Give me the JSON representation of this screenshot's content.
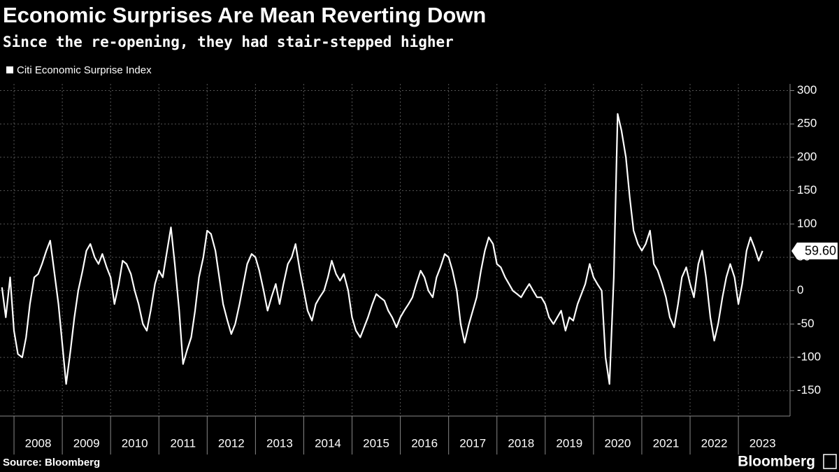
{
  "chart_data": {
    "type": "line",
    "title": "Economic Surprises Are Mean Reverting Down",
    "subtitle": "Since the re-opening, they had stair-stepped higher",
    "source": "Source: Bloomberg",
    "brand": "Bloomberg",
    "x": [
      2007.75,
      2007.83,
      2007.92,
      2008.0,
      2008.08,
      2008.17,
      2008.25,
      2008.33,
      2008.42,
      2008.5,
      2008.58,
      2008.67,
      2008.75,
      2008.83,
      2008.92,
      2009.0,
      2009.08,
      2009.17,
      2009.25,
      2009.33,
      2009.42,
      2009.5,
      2009.58,
      2009.67,
      2009.75,
      2009.83,
      2009.92,
      2010.0,
      2010.08,
      2010.17,
      2010.25,
      2010.33,
      2010.42,
      2010.5,
      2010.58,
      2010.67,
      2010.75,
      2010.83,
      2010.92,
      2011.0,
      2011.08,
      2011.17,
      2011.25,
      2011.33,
      2011.42,
      2011.5,
      2011.58,
      2011.67,
      2011.75,
      2011.83,
      2011.92,
      2012.0,
      2012.08,
      2012.17,
      2012.25,
      2012.33,
      2012.42,
      2012.5,
      2012.58,
      2012.67,
      2012.75,
      2012.83,
      2012.92,
      2013.0,
      2013.08,
      2013.17,
      2013.25,
      2013.33,
      2013.42,
      2013.5,
      2013.58,
      2013.67,
      2013.75,
      2013.83,
      2013.92,
      2014.0,
      2014.08,
      2014.17,
      2014.25,
      2014.33,
      2014.42,
      2014.5,
      2014.58,
      2014.67,
      2014.75,
      2014.83,
      2014.92,
      2015.0,
      2015.08,
      2015.17,
      2015.25,
      2015.33,
      2015.42,
      2015.5,
      2015.58,
      2015.67,
      2015.75,
      2015.83,
      2015.92,
      2016.0,
      2016.08,
      2016.17,
      2016.25,
      2016.33,
      2016.42,
      2016.5,
      2016.58,
      2016.67,
      2016.75,
      2016.83,
      2016.92,
      2017.0,
      2017.08,
      2017.17,
      2017.25,
      2017.33,
      2017.42,
      2017.5,
      2017.58,
      2017.67,
      2017.75,
      2017.83,
      2017.92,
      2018.0,
      2018.08,
      2018.17,
      2018.25,
      2018.33,
      2018.42,
      2018.5,
      2018.58,
      2018.67,
      2018.75,
      2018.83,
      2018.92,
      2019.0,
      2019.08,
      2019.17,
      2019.25,
      2019.33,
      2019.42,
      2019.5,
      2019.58,
      2019.67,
      2019.75,
      2019.83,
      2019.92,
      2020.0,
      2020.08,
      2020.17,
      2020.25,
      2020.33,
      2020.42,
      2020.5,
      2020.58,
      2020.67,
      2020.75,
      2020.83,
      2020.92,
      2021.0,
      2021.08,
      2021.17,
      2021.25,
      2021.33,
      2021.42,
      2021.5,
      2021.58,
      2021.67,
      2021.75,
      2021.83,
      2021.92,
      2022.0,
      2022.08,
      2022.17,
      2022.25,
      2022.33,
      2022.42,
      2022.5,
      2022.58,
      2022.67,
      2022.75,
      2022.83,
      2022.92,
      2023.0,
      2023.08,
      2023.17,
      2023.25,
      2023.33,
      2023.42,
      2023.5
    ],
    "series": [
      {
        "name": "Citi Economic Surprise Index",
        "color": "#ffffff",
        "values": [
          5,
          -40,
          20,
          -60,
          -95,
          -100,
          -70,
          -20,
          20,
          25,
          40,
          60,
          75,
          30,
          -20,
          -80,
          -140,
          -90,
          -40,
          0,
          30,
          60,
          70,
          50,
          40,
          55,
          35,
          20,
          -20,
          10,
          45,
          40,
          25,
          0,
          -20,
          -50,
          -60,
          -30,
          10,
          30,
          20,
          60,
          95,
          40,
          -30,
          -110,
          -90,
          -70,
          -30,
          20,
          50,
          90,
          85,
          60,
          20,
          -20,
          -45,
          -65,
          -50,
          -20,
          10,
          40,
          55,
          50,
          30,
          0,
          -30,
          -10,
          10,
          -20,
          10,
          40,
          50,
          70,
          30,
          0,
          -30,
          -45,
          -20,
          -10,
          0,
          20,
          45,
          25,
          15,
          25,
          0,
          -40,
          -60,
          -70,
          -55,
          -40,
          -20,
          -5,
          -10,
          -15,
          -30,
          -40,
          -55,
          -40,
          -30,
          -20,
          -10,
          10,
          30,
          20,
          0,
          -10,
          20,
          35,
          55,
          50,
          30,
          0,
          -50,
          -78,
          -50,
          -30,
          -10,
          30,
          60,
          80,
          70,
          40,
          35,
          20,
          10,
          0,
          -5,
          -10,
          0,
          10,
          0,
          -10,
          -10,
          -20,
          -40,
          -50,
          -40,
          -30,
          -60,
          -40,
          -45,
          -20,
          -5,
          10,
          40,
          20,
          10,
          0,
          -100,
          -140,
          20,
          265,
          240,
          200,
          140,
          90,
          70,
          60,
          70,
          90,
          40,
          30,
          10,
          -10,
          -40,
          -55,
          -20,
          20,
          35,
          10,
          -10,
          40,
          60,
          20,
          -40,
          -75,
          -50,
          -10,
          20,
          40,
          20,
          -20,
          10,
          60,
          80,
          65,
          45,
          59.6
        ]
      }
    ],
    "last_value": {
      "value": 59.6,
      "label": "59.60"
    },
    "xlim": [
      2007.71,
      2024.07
    ],
    "xticks": [
      {
        "value": 2008,
        "label": "2008"
      },
      {
        "value": 2009,
        "label": "2009"
      },
      {
        "value": 2010,
        "label": "2010"
      },
      {
        "value": 2011,
        "label": "2011"
      },
      {
        "value": 2012,
        "label": "2012"
      },
      {
        "value": 2013,
        "label": "2013"
      },
      {
        "value": 2014,
        "label": "2014"
      },
      {
        "value": 2015,
        "label": "2015"
      },
      {
        "value": 2016,
        "label": "2016"
      },
      {
        "value": 2017,
        "label": "2017"
      },
      {
        "value": 2018,
        "label": "2018"
      },
      {
        "value": 2019,
        "label": "2019"
      },
      {
        "value": 2020,
        "label": "2020"
      },
      {
        "value": 2021,
        "label": "2021"
      },
      {
        "value": 2022,
        "label": "2022"
      },
      {
        "value": 2023,
        "label": "2023"
      }
    ],
    "ylim": [
      -188,
      310
    ],
    "yticks": [
      -150,
      -100,
      -50,
      0,
      50,
      100,
      150,
      200,
      250,
      300
    ],
    "grid": true
  }
}
